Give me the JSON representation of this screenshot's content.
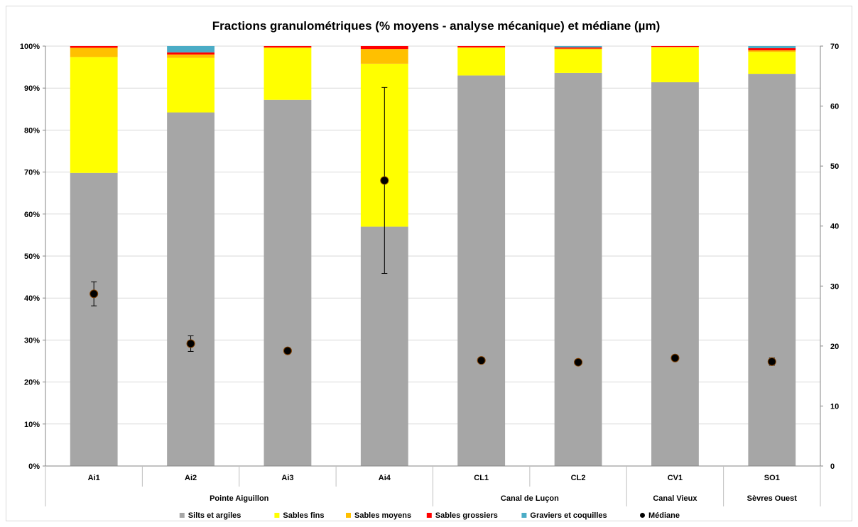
{
  "chart_data": {
    "type": "bar",
    "stacked": true,
    "title": "Fractions granulométriques (% moyens - analyse mécanique) et médiane (µm)",
    "categories": [
      "Ai1",
      "Ai2",
      "Ai3",
      "Ai4",
      "CL1",
      "CL2",
      "CV1",
      "SO1"
    ],
    "groups": [
      {
        "label": "Pointe Aiguillon",
        "count": 4
      },
      {
        "label": "Canal de Luçon",
        "count": 2
      },
      {
        "label": "Canal Vieux",
        "count": 1
      },
      {
        "label": "Sèvres Ouest",
        "count": 1
      }
    ],
    "y_left": {
      "ylim": [
        0,
        100
      ],
      "ticks": [
        "0%",
        "10%",
        "20%",
        "30%",
        "40%",
        "50%",
        "60%",
        "70%",
        "80%",
        "90%",
        "100%"
      ]
    },
    "y_right": {
      "ylim": [
        0,
        70
      ],
      "ticks": [
        "0",
        "10",
        "20",
        "30",
        "40",
        "50",
        "60",
        "70"
      ]
    },
    "series": [
      {
        "name": "Silts et argiles",
        "color": "#a6a6a6",
        "values": [
          69.8,
          84.2,
          87.2,
          57.0,
          93.0,
          93.6,
          91.4,
          93.4
        ]
      },
      {
        "name": "Sables fins",
        "color": "#ffff00",
        "values": [
          27.6,
          13.0,
          12.3,
          38.8,
          6.6,
          5.6,
          8.3,
          5.2
        ]
      },
      {
        "name": "Sables moyens",
        "color": "#ffc000",
        "values": [
          2.2,
          0.8,
          0.2,
          3.5,
          0.1,
          0.2,
          0.1,
          0.4
        ]
      },
      {
        "name": "Sables grossiers",
        "color": "#ff0000",
        "values": [
          0.4,
          0.5,
          0.3,
          0.7,
          0.3,
          0.3,
          0.2,
          0.5
        ]
      },
      {
        "name": "Graviers et coquilles",
        "color": "#4bacc6",
        "values": [
          0.0,
          1.5,
          0.0,
          0.0,
          0.0,
          0.3,
          0.0,
          0.5
        ]
      }
    ],
    "median": {
      "name": "Médiane",
      "color": "#000000",
      "values": [
        28.7,
        20.4,
        19.2,
        47.6,
        17.6,
        17.3,
        18.0,
        17.4
      ],
      "error": [
        2.0,
        1.3,
        0.4,
        15.5,
        0.4,
        0.3,
        0.4,
        0.6
      ]
    },
    "legend_position": "bottom",
    "grid": true
  }
}
